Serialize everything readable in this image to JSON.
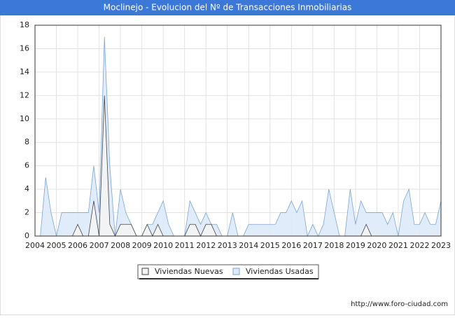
{
  "chart_data": {
    "type": "area",
    "title": "Moclinejo - Evolucion del Nº de Transacciones Inmobiliarias",
    "source": "http://www.foro-ciudad.com",
    "x": [
      2004.25,
      2004.5,
      2004.75,
      2005,
      2005.25,
      2005.5,
      2005.75,
      2006,
      2006.25,
      2006.5,
      2006.75,
      2007,
      2007.25,
      2007.5,
      2007.75,
      2008,
      2008.25,
      2008.5,
      2008.75,
      2009,
      2009.25,
      2009.5,
      2009.75,
      2010,
      2010.25,
      2010.5,
      2010.75,
      2011,
      2011.25,
      2011.5,
      2011.75,
      2012,
      2012.25,
      2012.5,
      2012.75,
      2013,
      2013.25,
      2013.5,
      2013.75,
      2014,
      2014.25,
      2014.5,
      2014.75,
      2015,
      2015.25,
      2015.5,
      2015.75,
      2016,
      2016.25,
      2016.5,
      2016.75,
      2017,
      2017.25,
      2017.5,
      2017.75,
      2018,
      2018.25,
      2018.5,
      2018.75,
      2019,
      2019.25,
      2019.5,
      2019.75,
      2020,
      2020.25,
      2020.5,
      2020.75,
      2021,
      2021.25,
      2021.5,
      2021.75,
      2022,
      2022.25,
      2022.5,
      2022.75,
      2023
    ],
    "series": [
      {
        "name": "Viviendas Usadas",
        "color": "#7aa5d6",
        "fill": "#ddeaf8",
        "values": [
          0,
          5,
          2,
          0,
          2,
          2,
          2,
          2,
          2,
          2,
          6,
          2,
          17,
          6,
          0,
          4,
          2,
          1,
          0,
          0,
          1,
          1,
          2,
          3,
          1,
          0,
          0,
          0,
          3,
          2,
          1,
          2,
          1,
          1,
          0,
          0,
          2,
          0,
          0,
          1,
          1,
          1,
          1,
          1,
          1,
          2,
          2,
          3,
          2,
          3,
          0,
          1,
          0,
          1,
          4,
          2,
          0,
          0,
          4,
          1,
          3,
          2,
          2,
          2,
          2,
          1,
          2,
          0,
          3,
          4,
          1,
          1,
          2,
          1,
          1,
          3
        ]
      },
      {
        "name": "Viviendas Nuevas",
        "color": "#444444",
        "fill": "#f4f4f4",
        "values": [
          0,
          0,
          0,
          0,
          0,
          0,
          0,
          1,
          0,
          0,
          3,
          0,
          12,
          1,
          0,
          1,
          1,
          1,
          0,
          0,
          1,
          0,
          1,
          0,
          0,
          0,
          0,
          0,
          1,
          1,
          0,
          1,
          1,
          0,
          0,
          0,
          0,
          0,
          0,
          0,
          0,
          0,
          0,
          0,
          0,
          0,
          0,
          0,
          0,
          0,
          0,
          0,
          0,
          0,
          0,
          0,
          0,
          0,
          0,
          0,
          0,
          1,
          0,
          0,
          0,
          0,
          0,
          0,
          0,
          0,
          0,
          0,
          0,
          0,
          0,
          0
        ]
      }
    ],
    "xlim": [
      2004,
      2023
    ],
    "xticks": [
      2004,
      2005,
      2006,
      2007,
      2008,
      2009,
      2010,
      2011,
      2012,
      2013,
      2014,
      2015,
      2016,
      2017,
      2018,
      2019,
      2020,
      2021,
      2022,
      2023
    ],
    "ylim": [
      0,
      18
    ],
    "yticks": [
      0,
      2,
      4,
      6,
      8,
      10,
      12,
      14,
      16,
      18
    ],
    "grid": true
  }
}
